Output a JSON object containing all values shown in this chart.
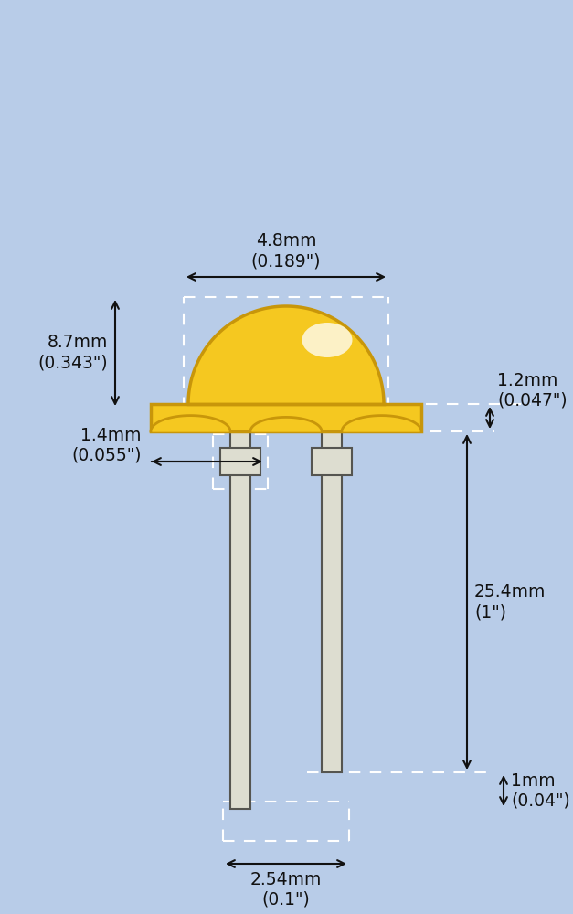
{
  "background_color": "#b8cce8",
  "led_color": "#f5c820",
  "led_edge": "#c8960a",
  "led_highlight_color": "#fff8c0",
  "wire_fill": "#ddddd0",
  "wire_edge": "#555550",
  "dash_color": "#ffffff",
  "arrow_color": "#111111",
  "text_color": "#111111",
  "dims": {
    "width_mm": "4.8mm\n(0.189\")",
    "height_mm": "8.7mm\n(0.343\")",
    "flange_h": "1.2mm\n(0.047\")",
    "lead_len": "25.4mm\n(1\")",
    "wire_w": "1.4mm\n(0.055\")",
    "pitch": "2.54mm\n(0.1\")",
    "short_lead": "1mm\n(0.04\")"
  }
}
